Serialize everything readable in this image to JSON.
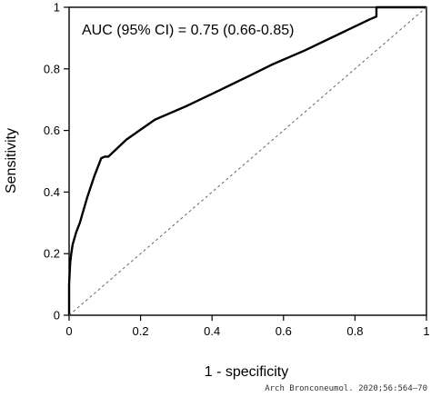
{
  "chart_data": {
    "type": "line",
    "title": "",
    "xlabel": "1 - specificity",
    "ylabel": "Sensitivity",
    "xlim": [
      0,
      1
    ],
    "ylim": [
      0,
      1
    ],
    "x_ticks": [
      "0",
      "0.2",
      "0.4",
      "0.6",
      "0.8",
      "1"
    ],
    "y_ticks": [
      "0",
      "0.2",
      "0.4",
      "0.6",
      "0.8",
      "1"
    ],
    "grid": false,
    "annotation": "AUC (95% CI) = 0.75 (0.66-0.85)",
    "series": [
      {
        "style": "solid",
        "color": "#000000",
        "x": [
          0,
          0,
          0.003,
          0.006,
          0.01,
          0.015,
          0.02,
          0.03,
          0.05,
          0.07,
          0.09,
          0.1,
          0.11,
          0.16,
          0.24,
          0.33,
          0.42,
          0.5,
          0.57,
          0.58,
          0.66,
          0.75,
          0.84,
          0.86,
          0.86,
          1.0
        ],
        "y": [
          0,
          0.1,
          0.17,
          0.2,
          0.23,
          0.25,
          0.27,
          0.3,
          0.38,
          0.45,
          0.51,
          0.515,
          0.515,
          0.57,
          0.635,
          0.68,
          0.73,
          0.775,
          0.815,
          0.82,
          0.86,
          0.91,
          0.96,
          0.97,
          1.0,
          1.0
        ]
      },
      {
        "style": "dashed",
        "color": "#666666",
        "x": [
          0,
          1
        ],
        "y": [
          0,
          1
        ]
      }
    ]
  },
  "credit": "Arch Bronconeumol. 2020;56:564–70"
}
